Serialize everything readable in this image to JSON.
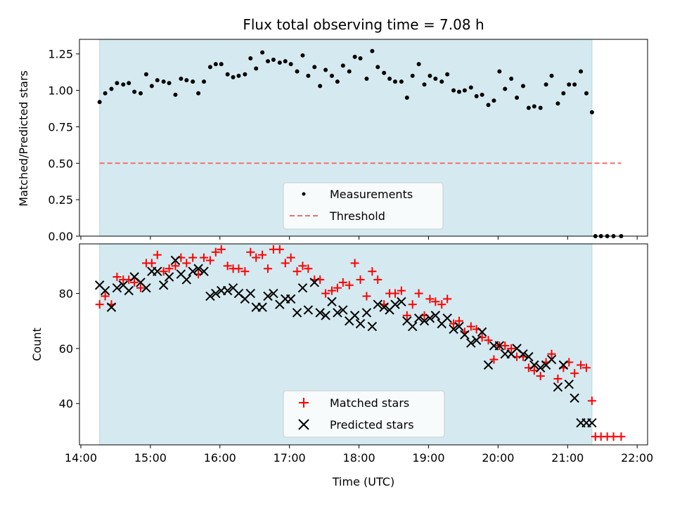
{
  "chart_data": [
    {
      "type": "scatter",
      "title": "Flux total observing time = 7.08 h",
      "ylabel": "Matched/Predicted stars",
      "xlabel": "",
      "xlim": [
        13.98,
        22.15
      ],
      "ylim": [
        0,
        1.35
      ],
      "yticks": [
        0,
        0.25,
        0.5,
        0.75,
        1.0,
        1.25
      ],
      "ytick_labels": [
        "0.00",
        "0.25",
        "0.50",
        "0.75",
        "1.00",
        "1.25"
      ],
      "shaded_span": [
        14.27,
        21.35
      ],
      "shade_color": "#d4eaf0",
      "legend_position": "lower-center",
      "series": [
        {
          "name": "Measurements",
          "color": "#000000",
          "marker": "dot",
          "x": [
            14.27,
            14.35,
            14.44,
            14.52,
            14.61,
            14.69,
            14.77,
            14.86,
            14.94,
            15.02,
            15.1,
            15.19,
            15.27,
            15.36,
            15.44,
            15.52,
            15.61,
            15.69,
            15.77,
            15.86,
            15.94,
            16.02,
            16.11,
            16.19,
            16.27,
            16.36,
            16.44,
            16.52,
            16.61,
            16.69,
            16.77,
            16.86,
            16.94,
            17.02,
            17.11,
            17.19,
            17.27,
            17.36,
            17.44,
            17.52,
            17.61,
            17.69,
            17.77,
            17.86,
            17.94,
            18.02,
            18.11,
            18.19,
            18.27,
            18.36,
            18.44,
            18.52,
            18.61,
            18.69,
            18.77,
            18.86,
            18.94,
            19.02,
            19.1,
            19.19,
            19.27,
            19.36,
            19.44,
            19.52,
            19.61,
            19.69,
            19.77,
            19.86,
            19.94,
            20.02,
            20.1,
            20.19,
            20.27,
            20.36,
            20.44,
            20.52,
            20.61,
            20.69,
            20.77,
            20.86,
            20.94,
            21.02,
            21.1,
            21.19,
            21.27,
            21.35,
            21.4,
            21.48,
            21.57,
            21.66,
            21.77
          ],
          "y": [
            0.92,
            0.98,
            1.01,
            1.05,
            1.04,
            1.05,
            0.99,
            0.98,
            1.11,
            1.03,
            1.07,
            1.06,
            1.05,
            0.97,
            1.08,
            1.07,
            1.06,
            0.98,
            1.06,
            1.16,
            1.18,
            1.18,
            1.11,
            1.09,
            1.1,
            1.11,
            1.22,
            1.15,
            1.26,
            1.2,
            1.21,
            1.19,
            1.2,
            1.18,
            1.13,
            1.24,
            1.1,
            1.16,
            1.03,
            1.14,
            1.1,
            1.06,
            1.17,
            1.13,
            1.23,
            1.22,
            1.08,
            1.27,
            1.16,
            1.12,
            1.08,
            1.06,
            1.06,
            0.95,
            1.1,
            1.18,
            1.04,
            1.1,
            1.08,
            1.06,
            1.11,
            1.0,
            0.99,
            1.0,
            1.02,
            0.96,
            0.97,
            0.9,
            0.93,
            1.13,
            1.01,
            1.08,
            0.95,
            1.03,
            0.88,
            0.89,
            0.88,
            1.04,
            1.1,
            0.91,
            0.98,
            1.04,
            1.04,
            1.13,
            0.98,
            0.85,
            0.0,
            0.0,
            0.0,
            0.0,
            0.0
          ]
        },
        {
          "name": "Threshold",
          "color": "#f07070",
          "style": "dashed",
          "x": [
            14.27,
            21.77
          ],
          "y": [
            0.5,
            0.5
          ]
        }
      ]
    },
    {
      "type": "scatter",
      "title": "",
      "ylabel": "Count",
      "xlabel": "Time (UTC)",
      "xlim": [
        13.98,
        22.15
      ],
      "ylim": [
        25,
        98
      ],
      "yticks": [
        40,
        60,
        80
      ],
      "ytick_labels": [
        "40",
        "60",
        "80"
      ],
      "xticks": [
        14,
        15,
        16,
        17,
        18,
        19,
        20,
        21,
        22
      ],
      "xtick_labels": [
        "14:00",
        "15:00",
        "16:00",
        "17:00",
        "18:00",
        "19:00",
        "20:00",
        "21:00",
        "22:00"
      ],
      "shaded_span": [
        14.27,
        21.35
      ],
      "legend_position": "lower-center",
      "series": [
        {
          "name": "Matched stars",
          "color": "#ff0000",
          "marker": "plus",
          "x": [
            14.27,
            14.35,
            14.44,
            14.52,
            14.61,
            14.69,
            14.77,
            14.86,
            14.94,
            15.02,
            15.1,
            15.19,
            15.27,
            15.36,
            15.44,
            15.52,
            15.61,
            15.69,
            15.77,
            15.86,
            15.94,
            16.02,
            16.11,
            16.19,
            16.27,
            16.36,
            16.44,
            16.52,
            16.61,
            16.69,
            16.77,
            16.86,
            16.94,
            17.02,
            17.11,
            17.19,
            17.27,
            17.36,
            17.44,
            17.52,
            17.61,
            17.69,
            17.77,
            17.86,
            17.94,
            18.02,
            18.11,
            18.19,
            18.27,
            18.36,
            18.44,
            18.52,
            18.61,
            18.69,
            18.77,
            18.86,
            18.94,
            19.02,
            19.1,
            19.19,
            19.27,
            19.36,
            19.44,
            19.52,
            19.61,
            19.69,
            19.77,
            19.86,
            19.94,
            20.02,
            20.1,
            20.19,
            20.27,
            20.36,
            20.44,
            20.52,
            20.61,
            20.69,
            20.77,
            20.86,
            20.94,
            21.02,
            21.1,
            21.19,
            21.27,
            21.35,
            21.4,
            21.48,
            21.57,
            21.66,
            21.77
          ],
          "y": [
            76,
            79,
            76,
            86,
            85,
            85,
            84,
            82,
            91,
            91,
            94,
            88,
            89,
            90,
            93,
            91,
            93,
            87,
            93,
            92,
            95,
            96,
            90,
            89,
            89,
            88,
            95,
            93,
            94,
            89,
            96,
            96,
            91,
            93,
            88,
            90,
            89,
            85,
            85,
            80,
            81,
            82,
            84,
            83,
            91,
            85,
            79,
            88,
            85,
            76,
            80,
            80,
            81,
            72,
            76,
            80,
            72,
            78,
            77,
            76,
            78,
            69,
            70,
            66,
            68,
            67,
            64,
            63,
            56,
            61,
            61,
            60,
            57,
            57,
            53,
            52,
            50,
            55,
            58,
            49,
            53,
            55,
            51,
            54,
            53,
            41,
            28,
            28,
            28,
            28,
            28
          ]
        },
        {
          "name": "Predicted stars",
          "color": "#000000",
          "marker": "x",
          "x": [
            14.27,
            14.35,
            14.44,
            14.52,
            14.61,
            14.69,
            14.77,
            14.86,
            14.94,
            15.02,
            15.1,
            15.19,
            15.27,
            15.36,
            15.44,
            15.52,
            15.61,
            15.69,
            15.77,
            15.86,
            15.94,
            16.02,
            16.11,
            16.19,
            16.27,
            16.36,
            16.44,
            16.52,
            16.61,
            16.69,
            16.77,
            16.86,
            16.94,
            17.02,
            17.11,
            17.19,
            17.27,
            17.36,
            17.44,
            17.52,
            17.61,
            17.69,
            17.77,
            17.86,
            17.94,
            18.02,
            18.11,
            18.19,
            18.27,
            18.36,
            18.44,
            18.52,
            18.61,
            18.69,
            18.77,
            18.86,
            18.94,
            19.02,
            19.1,
            19.19,
            19.27,
            19.36,
            19.44,
            19.52,
            19.61,
            19.69,
            19.77,
            19.86,
            19.94,
            20.02,
            20.1,
            20.19,
            20.27,
            20.36,
            20.44,
            20.52,
            20.61,
            20.69,
            20.77,
            20.86,
            20.94,
            21.02,
            21.1,
            21.19,
            21.27,
            21.35
          ],
          "y": [
            83,
            81,
            75,
            82,
            83,
            81,
            86,
            84,
            82,
            88,
            88,
            83,
            86,
            92,
            87,
            85,
            88,
            89,
            88,
            79,
            80,
            81,
            81,
            82,
            80,
            78,
            80,
            75,
            75,
            79,
            80,
            76,
            78,
            78,
            73,
            82,
            74,
            84,
            73,
            72,
            77,
            73,
            74,
            70,
            72,
            69,
            73,
            68,
            76,
            75,
            74,
            76,
            77,
            70,
            68,
            71,
            70,
            71,
            72,
            69,
            71,
            67,
            68,
            65,
            62,
            63,
            66,
            54,
            61,
            61,
            58,
            58,
            60,
            58,
            57,
            54,
            53,
            54,
            56,
            46,
            54,
            47,
            42,
            33,
            33,
            33
          ]
        }
      ]
    }
  ]
}
